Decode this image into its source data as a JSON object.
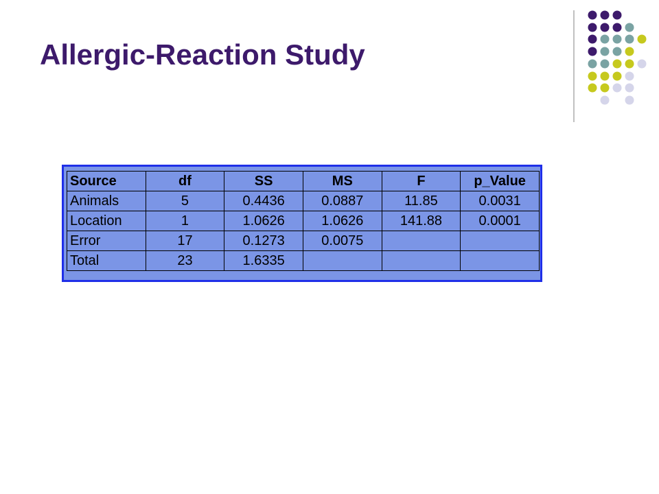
{
  "title": "Allergic-Reaction Study",
  "table": {
    "header": [
      "Source",
      "df",
      "SS",
      "MS",
      "F",
      "p_Value"
    ],
    "rows": [
      [
        "Animals",
        "5",
        "0.4436",
        "0.0887",
        "11.85",
        "0.0031"
      ],
      [
        "Location",
        "1",
        "1.0626",
        "1.0626",
        "141.88",
        "0.0001"
      ],
      [
        "Error",
        "17",
        "0.1273",
        "0.0075"
      ],
      [
        "Total",
        "23",
        "1.6335"
      ]
    ]
  }
}
